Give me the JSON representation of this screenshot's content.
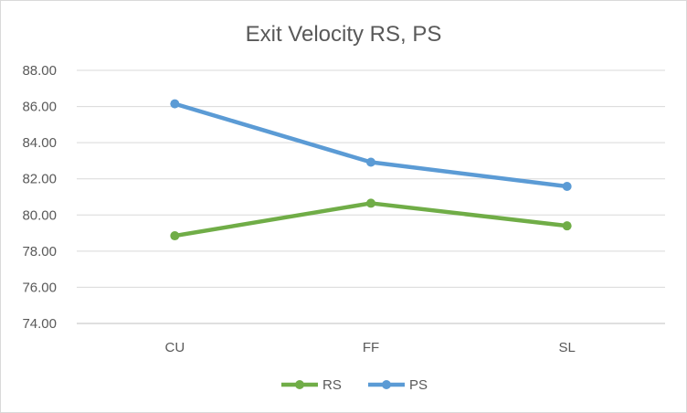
{
  "chart_data": {
    "type": "line",
    "title": "Exit Velocity RS, PS",
    "xlabel": "",
    "ylabel": "",
    "categories": [
      "CU",
      "FF",
      "SL"
    ],
    "ylim": [
      74,
      88
    ],
    "ytick_step": 2,
    "ytick_labels": [
      "74.00",
      "76.00",
      "78.00",
      "80.00",
      "82.00",
      "84.00",
      "86.00",
      "88.00"
    ],
    "grid": "horizontal",
    "legend": "bottom",
    "series": [
      {
        "name": "RS",
        "color": "#70ad47",
        "values": [
          78.85,
          80.65,
          79.4
        ]
      },
      {
        "name": "PS",
        "color": "#5b9bd5",
        "values": [
          86.15,
          82.92,
          81.58
        ]
      }
    ]
  }
}
